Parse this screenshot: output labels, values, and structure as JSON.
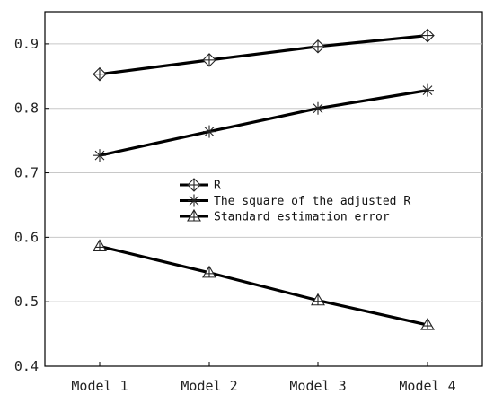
{
  "chart_data": {
    "type": "line",
    "title": "",
    "xlabel": "",
    "ylabel": "",
    "categories": [
      "Model 1",
      "Model 2",
      "Model 3",
      "Model 4"
    ],
    "ylim": [
      0.4,
      0.95
    ],
    "yticks": [
      "0.4",
      "0.5",
      "0.6",
      "0.7",
      "0.8",
      "0.9"
    ],
    "grid": "horizontal",
    "legend_position": "center",
    "series": [
      {
        "name": "R",
        "marker": "diamond-cross",
        "values": [
          0.853,
          0.875,
          0.896,
          0.913
        ]
      },
      {
        "name": "The square of the adjusted R",
        "marker": "asterisk",
        "values": [
          0.727,
          0.764,
          0.8,
          0.828
        ]
      },
      {
        "name": "Standard estimation error",
        "marker": "triangle-cross",
        "values": [
          0.586,
          0.545,
          0.502,
          0.464
        ]
      }
    ]
  }
}
